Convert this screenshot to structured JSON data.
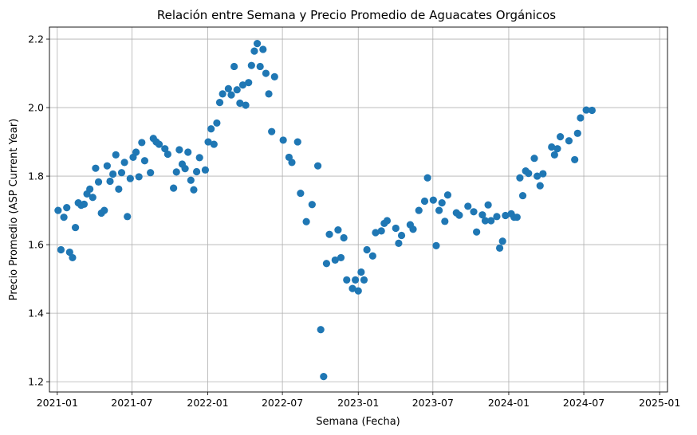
{
  "chart_data": {
    "type": "scatter",
    "title": "Relación entre Semana y Precio Promedio de Aguacates Orgánicos",
    "xlabel": "Semana (Fecha)",
    "ylabel": "Precio Promedio (ASP Current Year)",
    "xlim": [
      "2020-12-13",
      "2025-01-20"
    ],
    "ylim": [
      1.17,
      2.235
    ],
    "xticks": [
      {
        "date": "2021-01-01",
        "label": "2021-01"
      },
      {
        "date": "2021-07-01",
        "label": "2021-07"
      },
      {
        "date": "2022-01-01",
        "label": "2022-01"
      },
      {
        "date": "2022-07-01",
        "label": "2022-07"
      },
      {
        "date": "2023-01-01",
        "label": "2023-01"
      },
      {
        "date": "2023-07-01",
        "label": "2023-07"
      },
      {
        "date": "2024-01-01",
        "label": "2024-01"
      },
      {
        "date": "2024-07-01",
        "label": "2024-07"
      },
      {
        "date": "2025-01-01",
        "label": "2025-01"
      }
    ],
    "yticks": [
      {
        "value": 1.2,
        "label": "1.2"
      },
      {
        "value": 1.4,
        "label": "1.4"
      },
      {
        "value": 1.6,
        "label": "1.6"
      },
      {
        "value": 1.8,
        "label": "1.8"
      },
      {
        "value": 2.0,
        "label": "2.0"
      },
      {
        "value": 2.2,
        "label": "2.2"
      }
    ],
    "grid": true,
    "marker_color": "#1f77b4",
    "points": [
      [
        "2021-01-03",
        1.7
      ],
      [
        "2021-01-10",
        1.585
      ],
      [
        "2021-01-17",
        1.68
      ],
      [
        "2021-01-24",
        1.708
      ],
      [
        "2021-01-31",
        1.578
      ],
      [
        "2021-02-07",
        1.562
      ],
      [
        "2021-02-14",
        1.65
      ],
      [
        "2021-02-21",
        1.722
      ],
      [
        "2021-02-28",
        1.715
      ],
      [
        "2021-03-07",
        1.718
      ],
      [
        "2021-03-14",
        1.748
      ],
      [
        "2021-03-21",
        1.762
      ],
      [
        "2021-03-28",
        1.738
      ],
      [
        "2021-04-04",
        1.823
      ],
      [
        "2021-04-11",
        1.783
      ],
      [
        "2021-04-18",
        1.692
      ],
      [
        "2021-04-25",
        1.7
      ],
      [
        "2021-05-02",
        1.83
      ],
      [
        "2021-05-09",
        1.785
      ],
      [
        "2021-05-16",
        1.806
      ],
      [
        "2021-05-23",
        1.862
      ],
      [
        "2021-05-30",
        1.762
      ],
      [
        "2021-06-06",
        1.81
      ],
      [
        "2021-06-13",
        1.84
      ],
      [
        "2021-06-20",
        1.682
      ],
      [
        "2021-06-27",
        1.793
      ],
      [
        "2021-07-04",
        1.855
      ],
      [
        "2021-07-11",
        1.87
      ],
      [
        "2021-07-18",
        1.798
      ],
      [
        "2021-07-25",
        1.898
      ],
      [
        "2021-08-01",
        1.845
      ],
      [
        "2021-08-15",
        1.81
      ],
      [
        "2021-08-22",
        1.91
      ],
      [
        "2021-08-29",
        1.9
      ],
      [
        "2021-09-05",
        1.893
      ],
      [
        "2021-09-19",
        1.88
      ],
      [
        "2021-09-26",
        1.864
      ],
      [
        "2021-10-10",
        1.765
      ],
      [
        "2021-10-17",
        1.812
      ],
      [
        "2021-10-24",
        1.877
      ],
      [
        "2021-10-31",
        1.835
      ],
      [
        "2021-11-07",
        1.822
      ],
      [
        "2021-11-14",
        1.87
      ],
      [
        "2021-11-21",
        1.788
      ],
      [
        "2021-11-28",
        1.76
      ],
      [
        "2021-12-05",
        1.813
      ],
      [
        "2021-12-12",
        1.854
      ],
      [
        "2021-12-26",
        1.818
      ],
      [
        "2022-01-02",
        1.9
      ],
      [
        "2022-01-09",
        1.938
      ],
      [
        "2022-01-16",
        1.893
      ],
      [
        "2022-01-23",
        1.955
      ],
      [
        "2022-01-30",
        2.015
      ],
      [
        "2022-02-06",
        2.04
      ],
      [
        "2022-02-20",
        2.055
      ],
      [
        "2022-02-27",
        2.037
      ],
      [
        "2022-03-06",
        2.12
      ],
      [
        "2022-03-13",
        2.052
      ],
      [
        "2022-03-20",
        2.013
      ],
      [
        "2022-03-27",
        2.066
      ],
      [
        "2022-04-03",
        2.007
      ],
      [
        "2022-04-10",
        2.073
      ],
      [
        "2022-04-17",
        2.123
      ],
      [
        "2022-04-24",
        2.165
      ],
      [
        "2022-05-01",
        2.187
      ],
      [
        "2022-05-08",
        2.12
      ],
      [
        "2022-05-15",
        2.17
      ],
      [
        "2022-05-22",
        2.1
      ],
      [
        "2022-05-29",
        2.04
      ],
      [
        "2022-06-05",
        1.93
      ],
      [
        "2022-06-12",
        2.09
      ],
      [
        "2022-07-03",
        1.905
      ],
      [
        "2022-07-17",
        1.855
      ],
      [
        "2022-07-24",
        1.84
      ],
      [
        "2022-08-07",
        1.9
      ],
      [
        "2022-08-14",
        1.75
      ],
      [
        "2022-08-28",
        1.667
      ],
      [
        "2022-09-11",
        1.717
      ],
      [
        "2022-09-25",
        1.83
      ],
      [
        "2022-10-02",
        1.352
      ],
      [
        "2022-10-09",
        1.215
      ],
      [
        "2022-10-16",
        1.545
      ],
      [
        "2022-10-23",
        1.63
      ],
      [
        "2022-11-06",
        1.555
      ],
      [
        "2022-11-13",
        1.643
      ],
      [
        "2022-11-20",
        1.562
      ],
      [
        "2022-11-27",
        1.62
      ],
      [
        "2022-12-04",
        1.497
      ],
      [
        "2022-12-18",
        1.472
      ],
      [
        "2022-12-25",
        1.497
      ],
      [
        "2023-01-01",
        1.465
      ],
      [
        "2023-01-08",
        1.52
      ],
      [
        "2023-01-15",
        1.497
      ],
      [
        "2023-01-22",
        1.585
      ],
      [
        "2023-02-05",
        1.567
      ],
      [
        "2023-02-12",
        1.635
      ],
      [
        "2023-02-26",
        1.64
      ],
      [
        "2023-03-05",
        1.662
      ],
      [
        "2023-03-12",
        1.67
      ],
      [
        "2023-04-02",
        1.648
      ],
      [
        "2023-04-09",
        1.604
      ],
      [
        "2023-04-16",
        1.627
      ],
      [
        "2023-05-07",
        1.658
      ],
      [
        "2023-05-14",
        1.645
      ],
      [
        "2023-05-28",
        1.7
      ],
      [
        "2023-06-11",
        1.727
      ],
      [
        "2023-06-18",
        1.795
      ],
      [
        "2023-07-02",
        1.73
      ],
      [
        "2023-07-09",
        1.597
      ],
      [
        "2023-07-16",
        1.7
      ],
      [
        "2023-07-23",
        1.722
      ],
      [
        "2023-07-30",
        1.668
      ],
      [
        "2023-08-06",
        1.745
      ],
      [
        "2023-08-27",
        1.693
      ],
      [
        "2023-09-03",
        1.686
      ],
      [
        "2023-09-24",
        1.712
      ],
      [
        "2023-10-08",
        1.696
      ],
      [
        "2023-10-15",
        1.637
      ],
      [
        "2023-10-29",
        1.687
      ],
      [
        "2023-11-05",
        1.67
      ],
      [
        "2023-11-12",
        1.716
      ],
      [
        "2023-11-19",
        1.67
      ],
      [
        "2023-12-03",
        1.682
      ],
      [
        "2023-12-10",
        1.59
      ],
      [
        "2023-12-17",
        1.61
      ],
      [
        "2023-12-24",
        1.685
      ],
      [
        "2024-01-07",
        1.69
      ],
      [
        "2024-01-14",
        1.68
      ],
      [
        "2024-01-21",
        1.68
      ],
      [
        "2024-01-28",
        1.795
      ],
      [
        "2024-02-04",
        1.743
      ],
      [
        "2024-02-11",
        1.815
      ],
      [
        "2024-02-18",
        1.808
      ],
      [
        "2024-03-03",
        1.852
      ],
      [
        "2024-03-10",
        1.8
      ],
      [
        "2024-03-17",
        1.772
      ],
      [
        "2024-03-24",
        1.807
      ],
      [
        "2024-04-14",
        1.885
      ],
      [
        "2024-04-21",
        1.862
      ],
      [
        "2024-04-28",
        1.88
      ],
      [
        "2024-05-05",
        1.915
      ],
      [
        "2024-05-26",
        1.903
      ],
      [
        "2024-06-09",
        1.848
      ],
      [
        "2024-06-16",
        1.925
      ],
      [
        "2024-06-23",
        1.97
      ],
      [
        "2024-07-07",
        1.993
      ],
      [
        "2024-07-21",
        1.992
      ]
    ]
  }
}
